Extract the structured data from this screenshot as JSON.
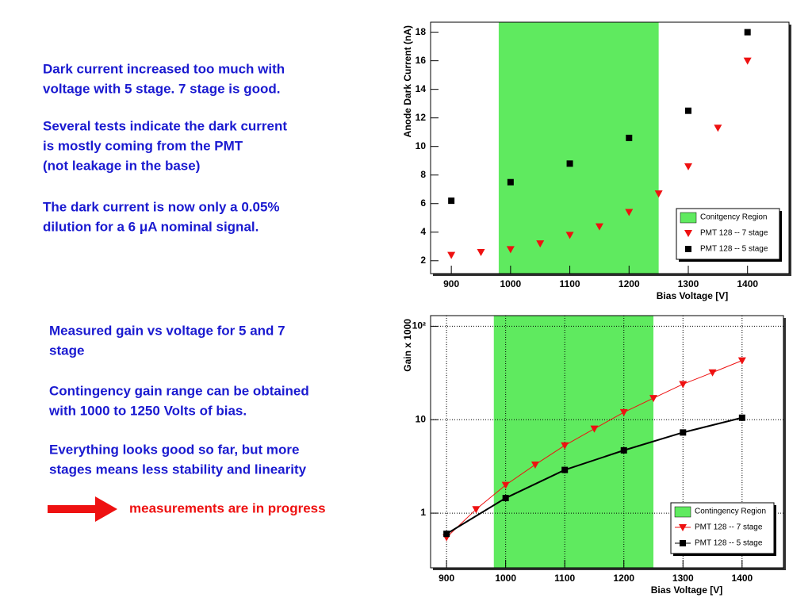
{
  "left_text_top": [
    [
      "Dark current increased too much with",
      "voltage with 5 stage. 7 stage is good."
    ],
    [
      "Several tests indicate the dark current",
      "is mostly coming from the PMT",
      "(not leakage in the base)"
    ],
    [
      "The dark current is now only a 0.05%",
      "dilution for a 6 μA nominal signal."
    ]
  ],
  "left_text_bottom": [
    [
      "Measured gain vs voltage for 5 and 7",
      "stage"
    ],
    [
      "Contingency gain range can be obtained",
      "with  1000 to 1250 Volts of bias."
    ],
    [
      "Everything looks good so far, but more",
      "stages means less stability and linearity"
    ]
  ],
  "callout": "measurements are in progress",
  "chart_data": [
    {
      "type": "scatter",
      "x_label": "Bias Voltage [V]",
      "y_label": "Anode Dark Current (nA)",
      "xlim": [
        865,
        1470
      ],
      "ylim": [
        1.1,
        18.7
      ],
      "xticks": [
        900,
        1000,
        1100,
        1200,
        1300,
        1400
      ],
      "yticks": [
        2,
        4,
        6,
        8,
        10,
        12,
        14,
        16,
        18
      ],
      "grid": false,
      "log_y": false,
      "legend": "bottom-right",
      "region": {
        "name": "Conitgency Region",
        "range": [
          980,
          1250
        ],
        "color": "#5fea5f"
      },
      "series": [
        {
          "name": "PMT 128 -- 7 stage",
          "color": "#ee1111",
          "marker": "triangle",
          "x": [
            900,
            950,
            1000,
            1050,
            1100,
            1150,
            1200,
            1250,
            1300,
            1350,
            1400
          ],
          "values": [
            2.4,
            2.6,
            2.8,
            3.2,
            3.8,
            4.4,
            5.4,
            6.7,
            8.6,
            11.3,
            16.0
          ]
        },
        {
          "name": "PMT 128 -- 5 stage",
          "color": "#000000",
          "marker": "square",
          "x": [
            900,
            1000,
            1100,
            1200,
            1300,
            1400
          ],
          "values": [
            6.2,
            7.5,
            8.8,
            10.6,
            12.5,
            18.0
          ]
        }
      ]
    },
    {
      "type": "line",
      "x_label": "Bias Voltage [V]",
      "y_label": "Gain x 1000",
      "xlim": [
        873,
        1470
      ],
      "ylim": [
        0.26,
        130
      ],
      "xticks": [
        900,
        1000,
        1100,
        1200,
        1300,
        1400
      ],
      "yticks": [
        1,
        10,
        {
          "value": 100,
          "label": "10²"
        }
      ],
      "grid": true,
      "log_y": true,
      "legend": "bottom-right",
      "region": {
        "name": "Contingency Region",
        "range": [
          980,
          1250
        ],
        "color": "#5fea5f"
      },
      "series": [
        {
          "name": "PMT 128 -- 7 stage",
          "color": "#ee1111",
          "marker": "triangle",
          "x": [
            900,
            950,
            1000,
            1050,
            1100,
            1150,
            1200,
            1250,
            1300,
            1350,
            1400
          ],
          "values": [
            0.55,
            1.1,
            2.0,
            3.3,
            5.3,
            8.0,
            12,
            17,
            24,
            32,
            43
          ]
        },
        {
          "name": "PMT 128 -- 5 stage",
          "color": "#000000",
          "marker": "square",
          "x": [
            900,
            1000,
            1100,
            1200,
            1300,
            1400
          ],
          "values": [
            0.6,
            1.45,
            2.9,
            4.7,
            7.3,
            10.5
          ]
        }
      ]
    }
  ]
}
